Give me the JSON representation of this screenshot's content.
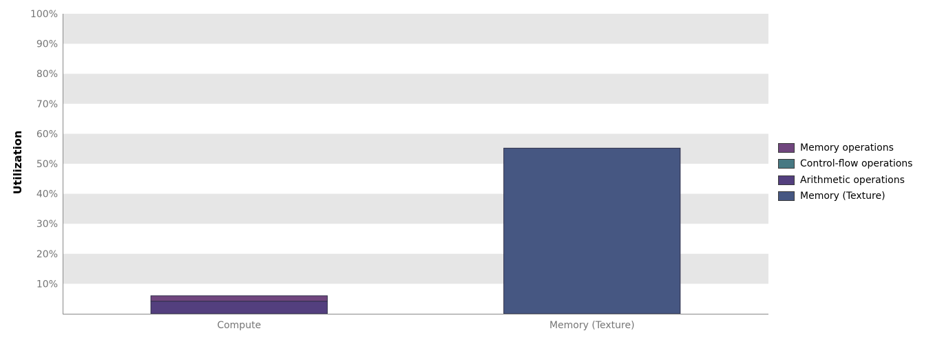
{
  "chart_data": {
    "type": "bar",
    "stacked": true,
    "ylabel": "Utilization",
    "xlabel": "",
    "ylim": [
      0,
      100
    ],
    "yticks": [
      "10%",
      "20%",
      "30%",
      "40%",
      "50%",
      "60%",
      "70%",
      "80%",
      "90%",
      "100%"
    ],
    "grid": "alternating horizontal bands",
    "legend_position": "right",
    "categories": [
      "Compute",
      "Memory (Texture)"
    ],
    "series": [
      {
        "name": "Arithmetic operations",
        "color": "#533f7e",
        "values": [
          4.2,
          0
        ]
      },
      {
        "name": "Control-flow operations",
        "color": "#477983",
        "values": [
          0,
          0
        ]
      },
      {
        "name": "Memory operations",
        "color": "#70467e",
        "values": [
          1.8,
          0
        ]
      },
      {
        "name": "Memory (Texture)",
        "color": "#465782",
        "values": [
          0,
          55.2
        ]
      }
    ],
    "legend": [
      "Memory operations",
      "Control-flow operations",
      "Arithmetic operations",
      "Memory (Texture)"
    ]
  }
}
